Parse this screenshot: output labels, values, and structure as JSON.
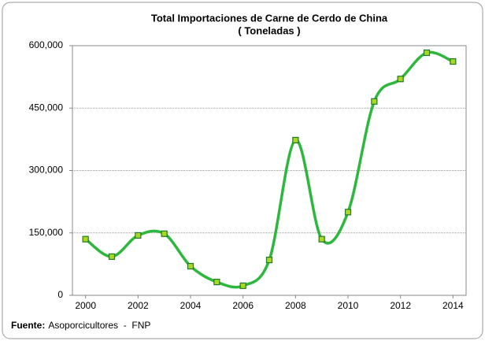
{
  "chart_data": {
    "type": "line",
    "title": [
      "Total Importaciones de Carne de Cerdo de China",
      "( Toneladas )"
    ],
    "x": [
      2000,
      2001,
      2002,
      2003,
      2004,
      2005,
      2006,
      2007,
      2008,
      2009,
      2010,
      2011,
      2012,
      2013,
      2014
    ],
    "series": [
      {
        "name": "Total Importaciones",
        "color": "#2db83d",
        "marker_color": "#a8d820",
        "values": [
          135000,
          93000,
          144000,
          148000,
          70000,
          32000,
          23000,
          85000,
          373000,
          135000,
          200000,
          466000,
          520000,
          583000,
          562000
        ]
      }
    ],
    "xlim": [
      1999.5,
      2014.5
    ],
    "xticks": [
      2000,
      2002,
      2004,
      2006,
      2008,
      2010,
      2012,
      2014
    ],
    "ylim": [
      0,
      600000
    ],
    "yticks": [
      0,
      {
        "value": 150000,
        "label": "150,000"
      },
      {
        "value": 300000,
        "label": "300,000"
      },
      {
        "value": 450000,
        "label": "450,000"
      },
      {
        "value": 600000,
        "label": "600,000"
      }
    ],
    "grid": true,
    "smooth": true,
    "source": {
      "label": "Fuente:",
      "text": "Asoporcicultores  -  FNP"
    }
  }
}
